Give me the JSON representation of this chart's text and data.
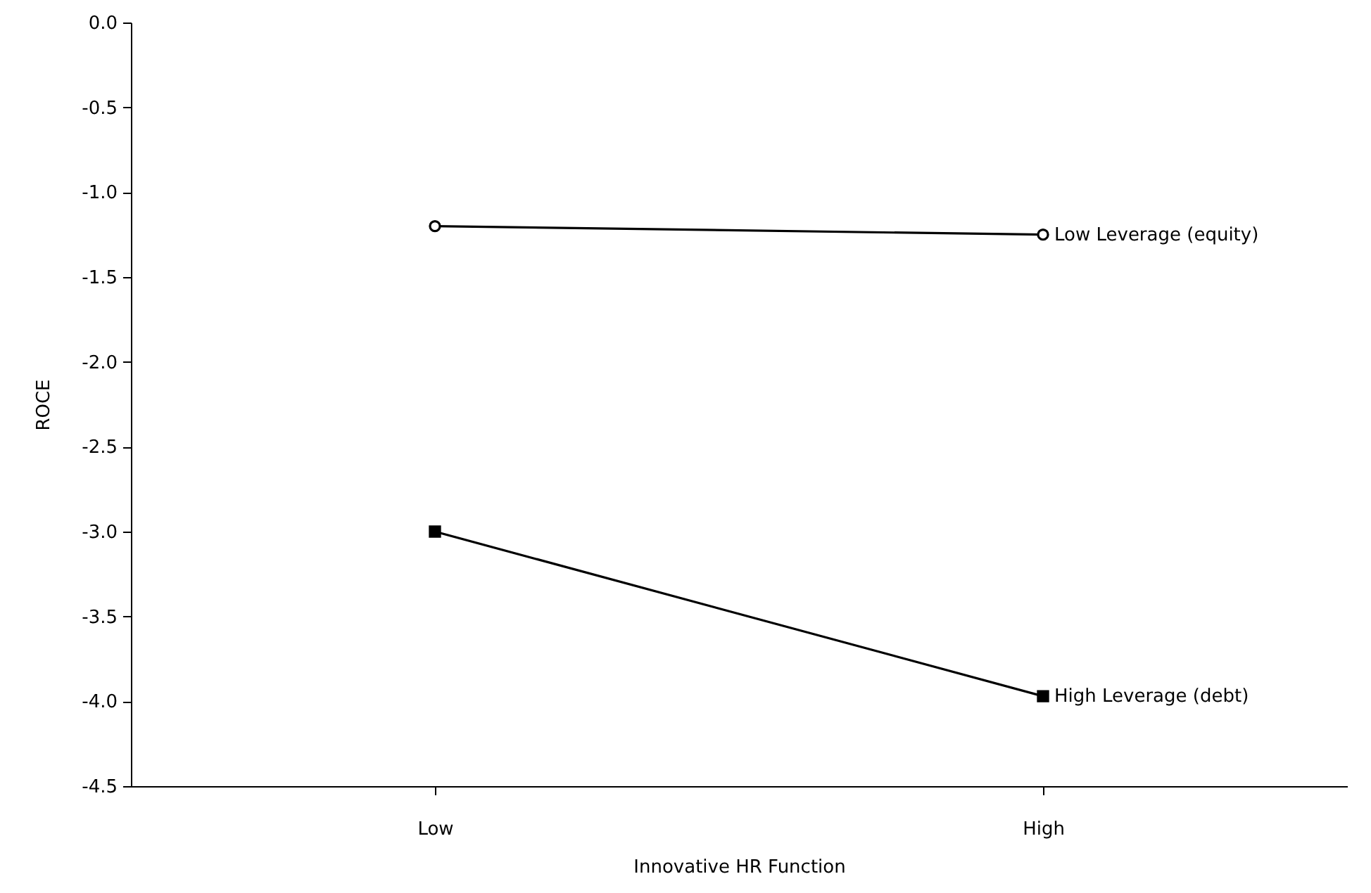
{
  "chart_data": {
    "type": "line",
    "xlabel": "Innovative HR Function",
    "ylabel": "ROCE",
    "categories": [
      "Low",
      "High"
    ],
    "series": [
      {
        "name": "Low Leverage (equity)",
        "color": "#000000",
        "marker": "circle",
        "values": [
          -1.2,
          -1.25
        ]
      },
      {
        "name": "High Leverage (debt)",
        "color": "#000000",
        "marker": "square",
        "values": [
          -3.0,
          -3.97
        ]
      }
    ],
    "ylim": [
      -4.5,
      0
    ],
    "yticks": [
      {
        "value": 0,
        "label": "0.0"
      },
      {
        "value": -0.5,
        "label": "-0.5"
      },
      {
        "value": -1,
        "label": "-1.0"
      },
      {
        "value": -1.5,
        "label": "-1.5"
      },
      {
        "value": -2,
        "label": "-2.0"
      },
      {
        "value": -2.5,
        "label": "-2.5"
      },
      {
        "value": -3,
        "label": "-3.0"
      },
      {
        "value": -3.5,
        "label": "-3.5"
      },
      {
        "value": -4,
        "label": "-4.0"
      },
      {
        "value": -4.5,
        "label": "-4.5"
      }
    ],
    "grid": false,
    "legend": false,
    "line_style": "solid"
  }
}
